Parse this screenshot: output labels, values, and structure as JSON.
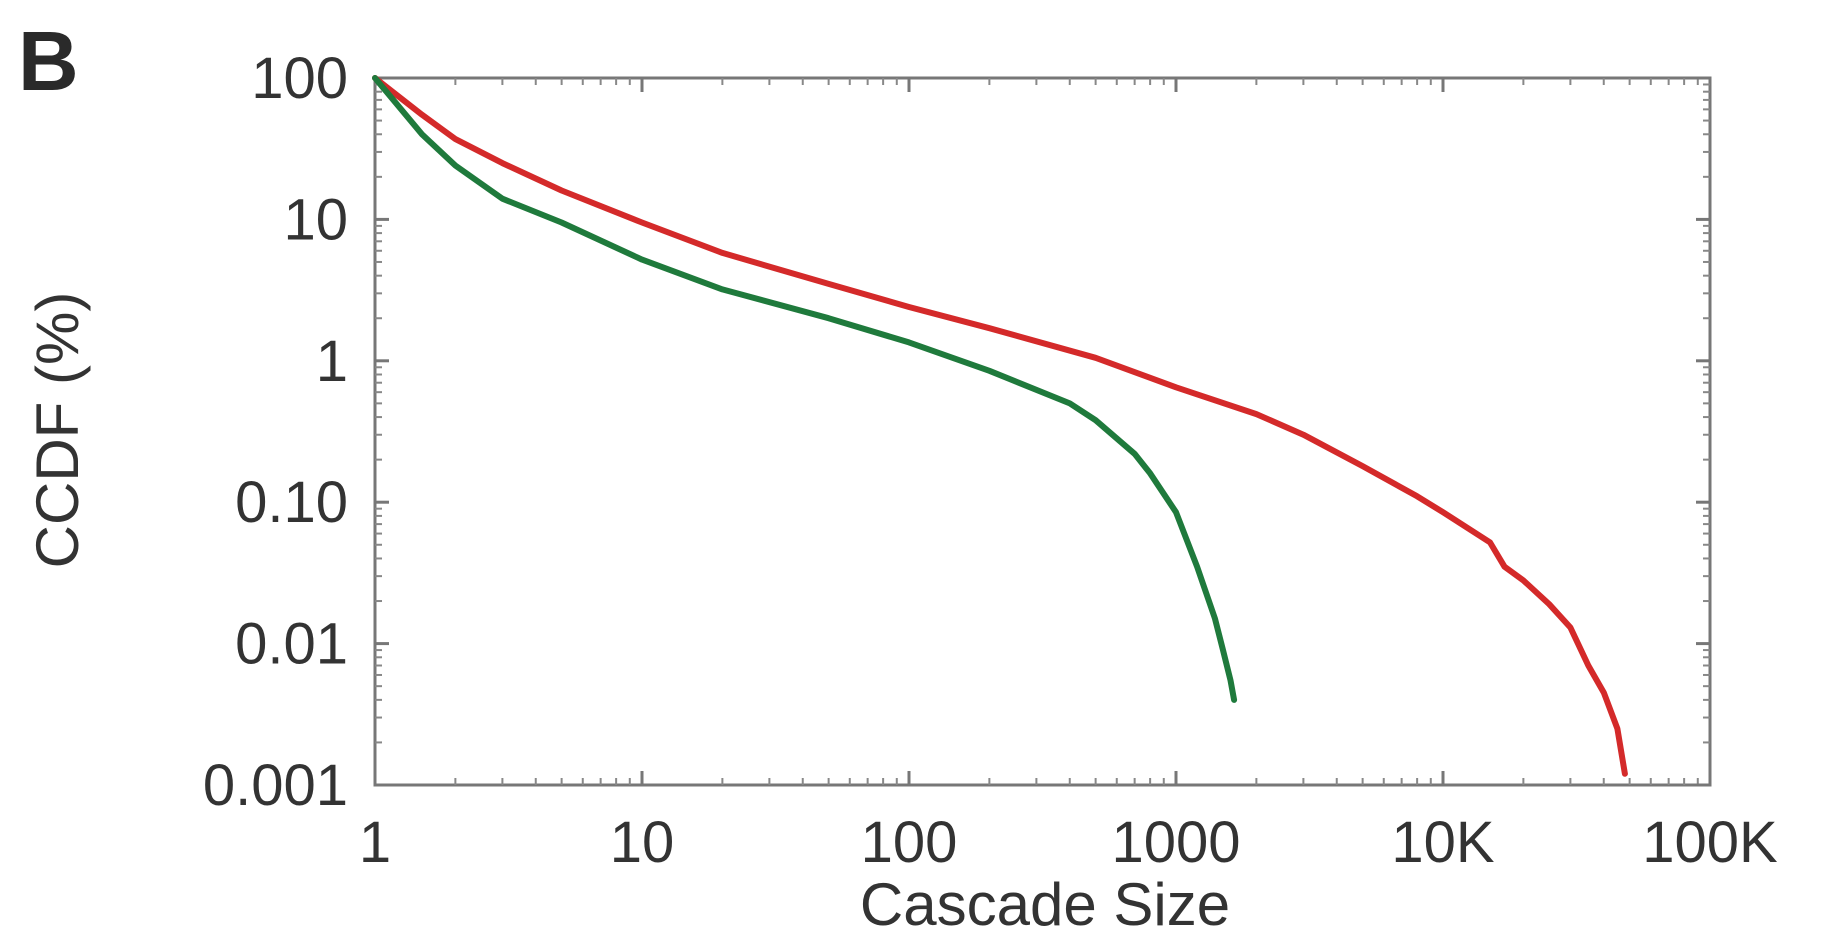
{
  "panel_label": "B",
  "chart_data": {
    "type": "line",
    "title": "",
    "xlabel": "Cascade Size",
    "ylabel": "CCDF (%)",
    "xscale": "log",
    "yscale": "log",
    "xlim": [
      1,
      100000
    ],
    "ylim": [
      0.001,
      100
    ],
    "grid": false,
    "x_ticks": [
      1,
      10,
      100,
      1000,
      10000,
      100000
    ],
    "x_tick_labels": [
      "1",
      "10",
      "100",
      "1000",
      "10K",
      "100K"
    ],
    "y_ticks": [
      100,
      10,
      1,
      0.1,
      0.01,
      0.001
    ],
    "y_tick_labels": [
      "100",
      "10",
      "1",
      "0.10",
      "0.01",
      "0.001"
    ],
    "series": [
      {
        "color": "#d42a2a",
        "x": [
          1,
          1.5,
          2,
          3,
          5,
          10,
          20,
          50,
          100,
          200,
          500,
          1000,
          2000,
          3000,
          5000,
          8000,
          10000,
          15000,
          17000,
          20000,
          25000,
          30000,
          35000,
          40000,
          45000,
          48000
        ],
        "y": [
          100,
          55,
          37,
          25,
          16,
          9.5,
          5.8,
          3.5,
          2.4,
          1.7,
          1.05,
          0.65,
          0.42,
          0.3,
          0.18,
          0.11,
          0.085,
          0.052,
          0.035,
          0.028,
          0.019,
          0.013,
          0.007,
          0.0045,
          0.0025,
          0.0012
        ]
      },
      {
        "color": "#1f7a3c",
        "x": [
          1,
          1.5,
          2,
          3,
          5,
          10,
          20,
          50,
          100,
          200,
          400,
          500,
          700,
          800,
          1000,
          1200,
          1400,
          1500,
          1600,
          1650
        ],
        "y": [
          100,
          40,
          24,
          14,
          9.5,
          5.2,
          3.2,
          2.0,
          1.35,
          0.85,
          0.5,
          0.38,
          0.22,
          0.16,
          0.085,
          0.035,
          0.015,
          0.009,
          0.0055,
          0.004
        ]
      }
    ]
  }
}
